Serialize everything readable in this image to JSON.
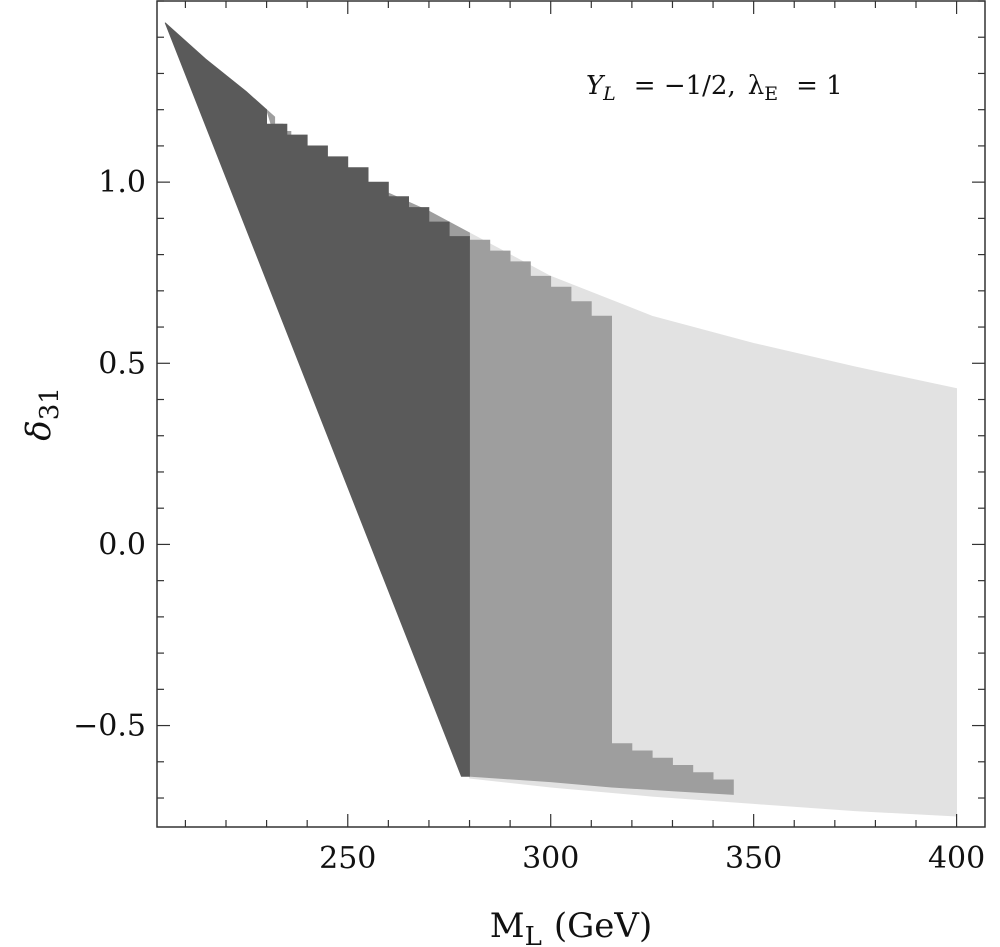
{
  "chart_data": {
    "type": "area",
    "xlabel": {
      "main": "M",
      "sub": "L",
      "unit": "(GeV)"
    },
    "ylabel": {
      "main": "δ",
      "sub": "31"
    },
    "annotation": {
      "y_main": "Y",
      "y_sub": "L",
      "y_rest": "= −1/2,",
      "l_main": "λ",
      "l_sub": "E",
      "l_rest": "= 1"
    },
    "xlim": [
      203,
      407
    ],
    "ylim": [
      -0.78,
      1.5
    ],
    "x_ticks": [
      {
        "value": 250,
        "label": "250"
      },
      {
        "value": 300,
        "label": "300"
      },
      {
        "value": 350,
        "label": "350"
      },
      {
        "value": 400,
        "label": "400"
      }
    ],
    "y_ticks": [
      {
        "value": -0.5,
        "label": "−0.5"
      },
      {
        "value": 0.0,
        "label": "0.0"
      },
      {
        "value": 0.5,
        "label": "0.5"
      },
      {
        "value": 1.0,
        "label": "1.0"
      }
    ],
    "x_minor_step": 10,
    "y_minor_step": 0.1,
    "grid": false,
    "colors": {
      "region_dark": "#5a5a5a",
      "region_dark_edge": "#505050",
      "region_medium": "#9e9e9e",
      "region_light": "#e2e2e2",
      "frame": "#333333"
    },
    "regions": [
      {
        "name": "light",
        "color_key": "region_light",
        "points": [
          [
            280,
            0.86
          ],
          [
            300,
            0.74
          ],
          [
            325,
            0.63
          ],
          [
            350,
            0.555
          ],
          [
            375,
            0.49
          ],
          [
            400,
            0.43
          ],
          [
            400,
            -0.75
          ],
          [
            375,
            -0.735
          ],
          [
            350,
            -0.715
          ],
          [
            325,
            -0.695
          ],
          [
            300,
            -0.67
          ],
          [
            280,
            -0.645
          ]
        ]
      },
      {
        "name": "medium",
        "color_key": "region_medium",
        "points": [
          [
            230,
            1.2
          ],
          [
            232,
            1.18
          ],
          [
            232,
            1.16
          ],
          [
            234,
            1.16
          ],
          [
            234,
            1.14
          ],
          [
            236,
            1.14
          ],
          [
            236,
            1.12
          ],
          [
            238,
            1.12
          ],
          [
            238,
            1.1
          ],
          [
            240,
            1.1
          ],
          [
            240,
            1.08
          ],
          [
            250,
            1.03
          ],
          [
            260,
            0.97
          ],
          [
            270,
            0.92
          ],
          [
            280,
            0.86
          ],
          [
            280,
            0.84
          ],
          [
            285,
            0.84
          ],
          [
            285,
            0.81
          ],
          [
            290,
            0.81
          ],
          [
            290,
            0.78
          ],
          [
            295,
            0.78
          ],
          [
            295,
            0.74
          ],
          [
            300,
            0.74
          ],
          [
            300,
            0.71
          ],
          [
            305,
            0.71
          ],
          [
            305,
            0.67
          ],
          [
            310,
            0.67
          ],
          [
            310,
            0.63
          ],
          [
            315,
            0.63
          ],
          [
            315,
            0.57
          ],
          [
            315,
            -0.55
          ],
          [
            320,
            -0.55
          ],
          [
            320,
            -0.57
          ],
          [
            325,
            -0.57
          ],
          [
            325,
            -0.59
          ],
          [
            330,
            -0.59
          ],
          [
            330,
            -0.61
          ],
          [
            335,
            -0.61
          ],
          [
            335,
            -0.63
          ],
          [
            340,
            -0.63
          ],
          [
            340,
            -0.65
          ],
          [
            345,
            -0.65
          ],
          [
            345,
            -0.69
          ],
          [
            330,
            -0.68
          ],
          [
            315,
            -0.67
          ],
          [
            300,
            -0.655
          ],
          [
            280,
            -0.64
          ]
        ]
      },
      {
        "name": "dark",
        "color_key": "region_dark",
        "points": [
          [
            205,
            1.44
          ],
          [
            215,
            1.34
          ],
          [
            225,
            1.25
          ],
          [
            230,
            1.2
          ],
          [
            230,
            1.16
          ],
          [
            235,
            1.16
          ],
          [
            235,
            1.13
          ],
          [
            240,
            1.13
          ],
          [
            240,
            1.1
          ],
          [
            245,
            1.1
          ],
          [
            245,
            1.07
          ],
          [
            250,
            1.07
          ],
          [
            250,
            1.04
          ],
          [
            255,
            1.04
          ],
          [
            255,
            1.0
          ],
          [
            260,
            1.0
          ],
          [
            260,
            0.96
          ],
          [
            265,
            0.96
          ],
          [
            265,
            0.93
          ],
          [
            270,
            0.93
          ],
          [
            270,
            0.89
          ],
          [
            275,
            0.89
          ],
          [
            275,
            0.85
          ],
          [
            280,
            0.85
          ],
          [
            280,
            -0.64
          ],
          [
            278,
            -0.64
          ]
        ]
      }
    ]
  }
}
